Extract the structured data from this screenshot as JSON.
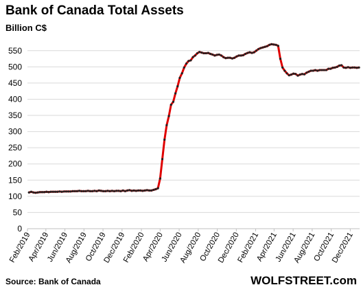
{
  "header": {
    "title": "Bank of Canada Total Assets",
    "subtitle": "Billion C$"
  },
  "footer": {
    "source": "Source: Bank of Canada",
    "brand": "WOLFSTREET.com"
  },
  "colors": {
    "line": "#e00000",
    "marker": "#222222",
    "grid": "#d9d9d9",
    "axis": "#bfbfbf"
  },
  "chart_data": {
    "type": "line",
    "title": "Bank of Canada Total Assets",
    "ylabel": "Billion C$",
    "ylim": [
      0,
      575
    ],
    "yticks": [
      0,
      50,
      100,
      150,
      200,
      250,
      300,
      350,
      400,
      450,
      500,
      550
    ],
    "grid": "horizontal",
    "x_range": [
      "2019-02-01",
      "2021-12-31"
    ],
    "xtick_labels": [
      "Feb/2019",
      "Apr/2019",
      "Jun/2019",
      "Aug/2019",
      "Oct/2019",
      "Dec/2019",
      "Feb/2020",
      "Apr/2020",
      "Jun/2020",
      "Aug/2020",
      "Oct/2020",
      "Dec/2020",
      "Feb/2021",
      "Apr/2021",
      "Jun/2021",
      "Aug/2021",
      "Oct/2021",
      "Dec/2021"
    ],
    "xtick_dates": [
      "2019-02-01",
      "2019-04-01",
      "2019-06-01",
      "2019-08-01",
      "2019-10-01",
      "2019-12-01",
      "2020-02-01",
      "2020-04-01",
      "2020-06-01",
      "2020-08-01",
      "2020-10-01",
      "2020-12-01",
      "2021-02-01",
      "2021-04-01",
      "2021-06-01",
      "2021-08-01",
      "2021-10-01",
      "2021-12-01"
    ],
    "series": [
      {
        "x": [
          "2019-02-06",
          "2019-02-13",
          "2019-02-20",
          "2019-02-27",
          "2019-03-06",
          "2019-03-13",
          "2019-03-20",
          "2019-03-27",
          "2019-04-03",
          "2019-04-10",
          "2019-04-17",
          "2019-04-24",
          "2019-05-01",
          "2019-05-08",
          "2019-05-15",
          "2019-05-22",
          "2019-05-29",
          "2019-06-05",
          "2019-06-12",
          "2019-06-19",
          "2019-06-26",
          "2019-07-03",
          "2019-07-10",
          "2019-07-17",
          "2019-07-24",
          "2019-07-31",
          "2019-08-07",
          "2019-08-14",
          "2019-08-21",
          "2019-08-28",
          "2019-09-04",
          "2019-09-11",
          "2019-09-18",
          "2019-09-25",
          "2019-10-02",
          "2019-10-09",
          "2019-10-16",
          "2019-10-23",
          "2019-10-30",
          "2019-11-06",
          "2019-11-13",
          "2019-11-20",
          "2019-11-27",
          "2019-12-04",
          "2019-12-11",
          "2019-12-18",
          "2019-12-25",
          "2020-01-01",
          "2020-01-08",
          "2020-01-15",
          "2020-01-22",
          "2020-01-29",
          "2020-02-05",
          "2020-02-12",
          "2020-02-19",
          "2020-02-26",
          "2020-03-04",
          "2020-03-11",
          "2020-03-18",
          "2020-03-25",
          "2020-04-01",
          "2020-04-08",
          "2020-04-15",
          "2020-04-22",
          "2020-04-29",
          "2020-05-06",
          "2020-05-13",
          "2020-05-20",
          "2020-05-27",
          "2020-06-03",
          "2020-06-10",
          "2020-06-17",
          "2020-06-24",
          "2020-07-01",
          "2020-07-08",
          "2020-07-15",
          "2020-07-22",
          "2020-07-29",
          "2020-08-05",
          "2020-08-12",
          "2020-08-19",
          "2020-08-26",
          "2020-09-02",
          "2020-09-09",
          "2020-09-16",
          "2020-09-23",
          "2020-09-30",
          "2020-10-07",
          "2020-10-14",
          "2020-10-21",
          "2020-10-28",
          "2020-11-04",
          "2020-11-11",
          "2020-11-18",
          "2020-11-25",
          "2020-12-02",
          "2020-12-09",
          "2020-12-16",
          "2020-12-23",
          "2020-12-30",
          "2021-01-06",
          "2021-01-13",
          "2021-01-20",
          "2021-01-27",
          "2021-02-03",
          "2021-02-10",
          "2021-02-17",
          "2021-02-24",
          "2021-03-03",
          "2021-03-10",
          "2021-03-17",
          "2021-03-24",
          "2021-03-31",
          "2021-04-07",
          "2021-04-14",
          "2021-04-21",
          "2021-04-28",
          "2021-05-05",
          "2021-05-12",
          "2021-05-19",
          "2021-05-26",
          "2021-06-02",
          "2021-06-09",
          "2021-06-16",
          "2021-06-23",
          "2021-06-30",
          "2021-07-07",
          "2021-07-14",
          "2021-07-21",
          "2021-07-28",
          "2021-08-04",
          "2021-08-11",
          "2021-08-18",
          "2021-08-25",
          "2021-09-01",
          "2021-09-08",
          "2021-09-15",
          "2021-09-22",
          "2021-09-29",
          "2021-10-06",
          "2021-10-13",
          "2021-10-20",
          "2021-10-27",
          "2021-11-03",
          "2021-11-10",
          "2021-11-17",
          "2021-11-24",
          "2021-12-01",
          "2021-12-08",
          "2021-12-15",
          "2021-12-22",
          "2021-12-29"
        ],
        "values": [
          112,
          114,
          112,
          111,
          112,
          113,
          113,
          113,
          114,
          113,
          114,
          114,
          114,
          114,
          115,
          114,
          115,
          115,
          115,
          115,
          116,
          116,
          116,
          117,
          116,
          116,
          116,
          117,
          116,
          116,
          117,
          116,
          118,
          117,
          116,
          116,
          117,
          116,
          117,
          116,
          117,
          117,
          116,
          118,
          116,
          118,
          119,
          117,
          118,
          117,
          118,
          118,
          117,
          118,
          119,
          118,
          118,
          120,
          122,
          125,
          155,
          215,
          275,
          320,
          348,
          383,
          392,
          418,
          440,
          466,
          480,
          498,
          510,
          518,
          520,
          530,
          535,
          542,
          546,
          544,
          542,
          542,
          543,
          540,
          538,
          535,
          537,
          538,
          535,
          530,
          527,
          528,
          528,
          526,
          528,
          532,
          535,
          535,
          536,
          540,
          543,
          545,
          543,
          545,
          550,
          555,
          558,
          560,
          562,
          564,
          568,
          570,
          569,
          568,
          565,
          525,
          498,
          488,
          480,
          474,
          476,
          479,
          478,
          473,
          476,
          478,
          477,
          482,
          485,
          488,
          488,
          490,
          488,
          490,
          490,
          490,
          490,
          494,
          494,
          497,
          498,
          500,
          504,
          505,
          498,
          497,
          499,
          497,
          498,
          498,
          497,
          498
        ]
      }
    ]
  }
}
